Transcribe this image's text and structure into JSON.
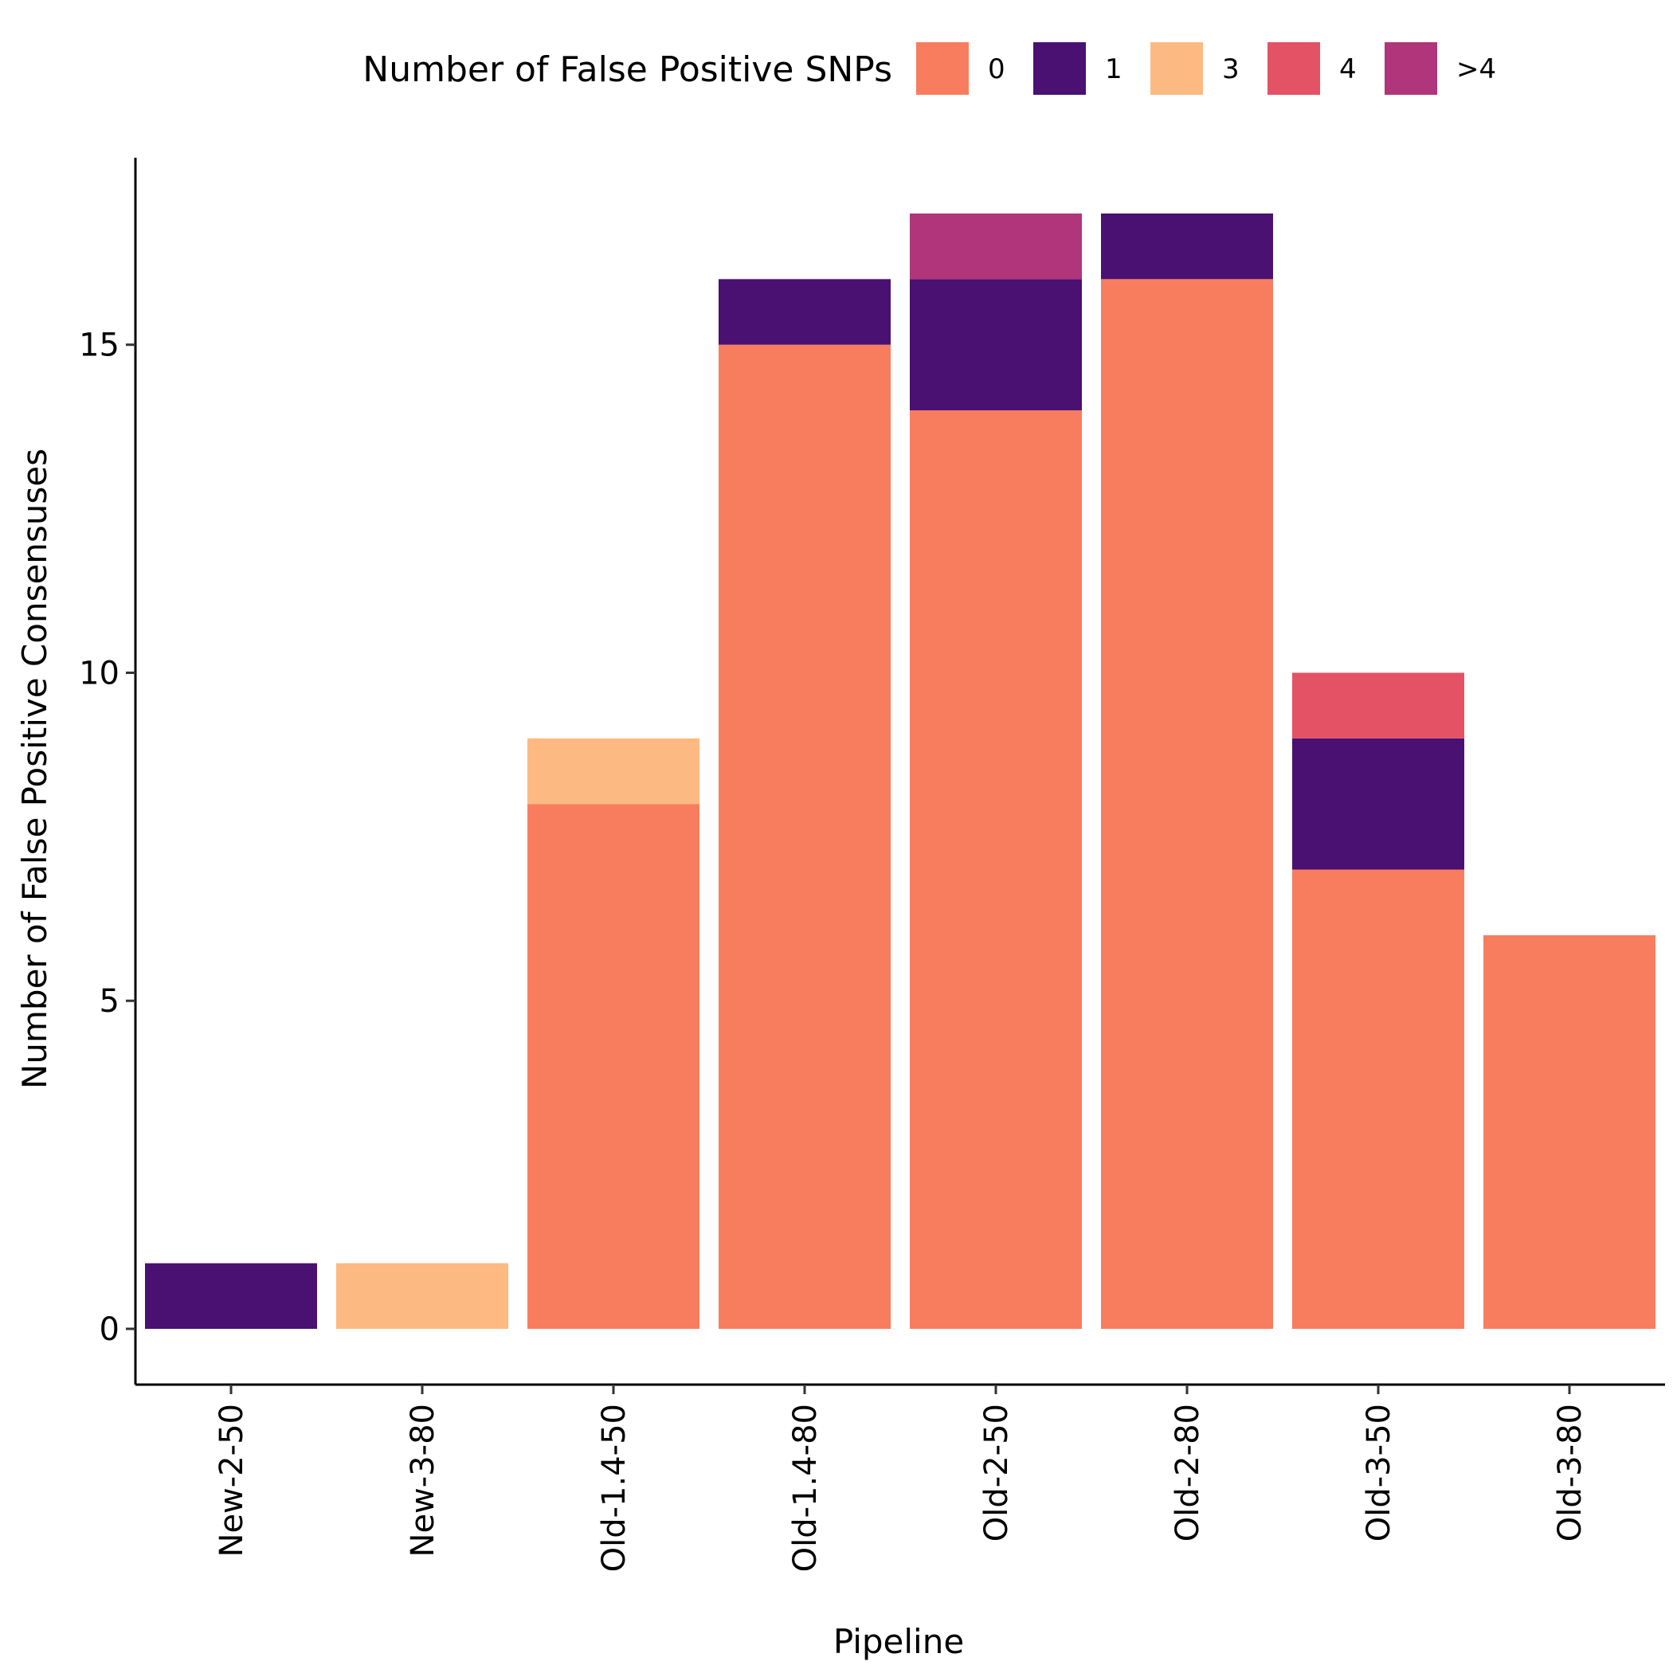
{
  "chart_data": {
    "type": "bar",
    "stacked": true,
    "xlabel": "Pipeline",
    "ylabel": "Number of False Positive Consensuses",
    "legend_title": "Number of False Positive SNPs",
    "legend_position": "top",
    "grid": false,
    "categories": [
      "New-2-50",
      "New-3-80",
      "Old-1.4-50",
      "Old-1.4-80",
      "Old-2-50",
      "Old-2-80",
      "Old-3-50",
      "Old-3-80"
    ],
    "ylim": [
      -0.85,
      17.85
    ],
    "y_ticks": [
      0,
      5,
      10,
      15
    ],
    "series": [
      {
        "name": "0",
        "color": "#F87D5F",
        "values": [
          0,
          0,
          8,
          15,
          14,
          16,
          7,
          6
        ]
      },
      {
        "name": "1",
        "color": "#4A1072",
        "values": [
          1,
          0,
          0,
          1,
          2,
          1,
          2,
          0
        ]
      },
      {
        "name": "3",
        "color": "#FCBA82",
        "values": [
          0,
          1,
          1,
          0,
          0,
          0,
          0,
          0
        ]
      },
      {
        "name": "4",
        "color": "#E45265",
        "values": [
          0,
          0,
          0,
          0,
          0,
          0,
          1,
          0
        ]
      },
      {
        "name": ">4",
        "color": "#B1357A",
        "values": [
          0,
          0,
          0,
          0,
          1,
          0,
          0,
          0
        ]
      }
    ]
  }
}
